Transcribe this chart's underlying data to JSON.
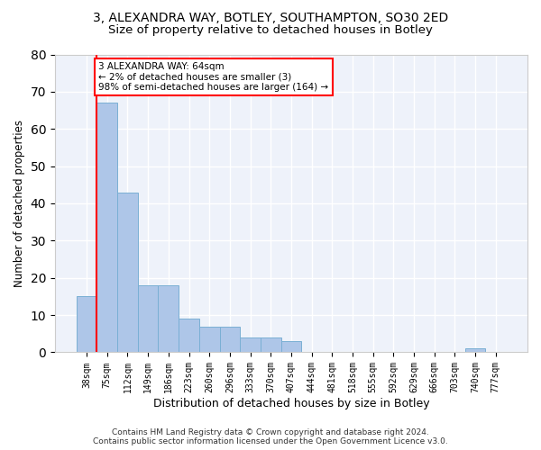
{
  "title1": "3, ALEXANDRA WAY, BOTLEY, SOUTHAMPTON, SO30 2ED",
  "title2": "Size of property relative to detached houses in Botley",
  "xlabel": "Distribution of detached houses by size in Botley",
  "ylabel": "Number of detached properties",
  "bar_labels": [
    "38sqm",
    "75sqm",
    "112sqm",
    "149sqm",
    "186sqm",
    "223sqm",
    "260sqm",
    "296sqm",
    "333sqm",
    "370sqm",
    "407sqm",
    "444sqm",
    "481sqm",
    "518sqm",
    "555sqm",
    "592sqm",
    "629sqm",
    "666sqm",
    "703sqm",
    "740sqm",
    "777sqm"
  ],
  "bar_values": [
    15,
    67,
    43,
    18,
    18,
    9,
    7,
    7,
    4,
    4,
    3,
    0,
    0,
    0,
    0,
    0,
    0,
    0,
    0,
    1,
    0
  ],
  "bar_color": "#aec6e8",
  "bar_edge_color": "#7aafd4",
  "property_line_label": "3 ALEXANDRA WAY: 64sqm",
  "pct_smaller": "2% of detached houses are smaller (3)",
  "pct_larger": "98% of semi-detached houses are larger (164)",
  "ylim": [
    0,
    80
  ],
  "yticks": [
    0,
    10,
    20,
    30,
    40,
    50,
    60,
    70,
    80
  ],
  "background_color": "#eef2fa",
  "grid_color": "#ffffff",
  "footer": "Contains HM Land Registry data © Crown copyright and database right 2024.\nContains public sector information licensed under the Open Government Licence v3.0.",
  "title_fontsize": 10,
  "subtitle_fontsize": 9.5
}
